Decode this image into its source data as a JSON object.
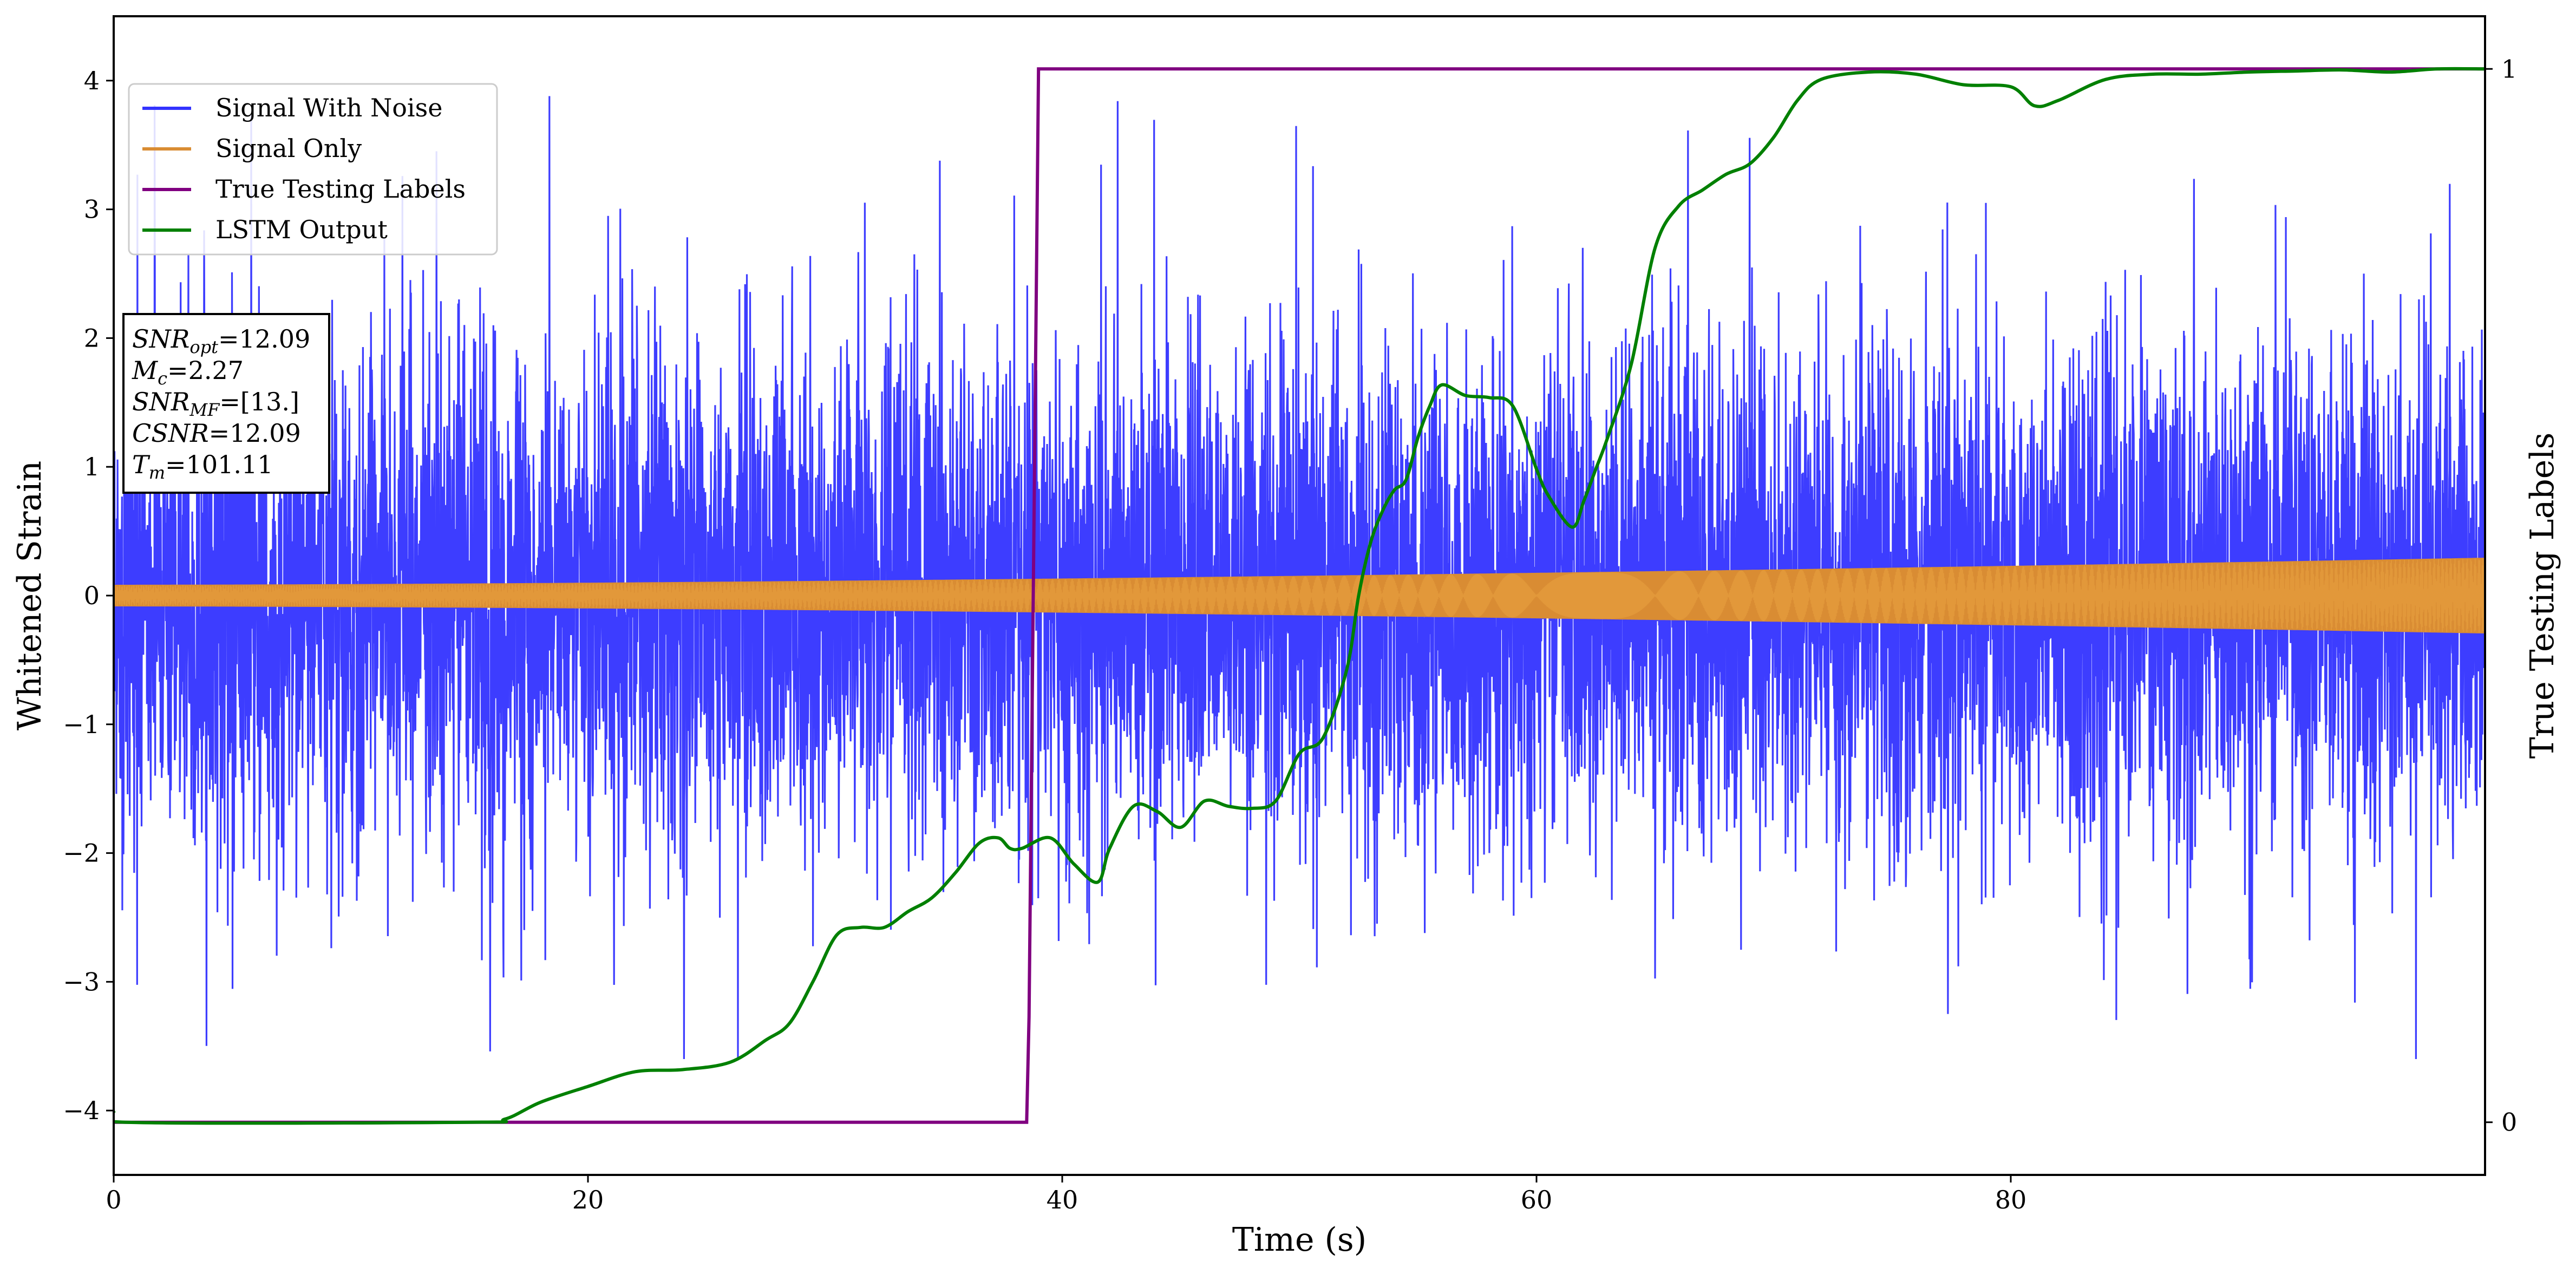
{
  "chart_data": {
    "type": "line",
    "xlabel": "Time (s)",
    "ylabel": "Whitened Strain",
    "y2label": "True Testing Labels",
    "xlim": [
      0,
      100
    ],
    "ylim": [
      -4.5,
      4.5
    ],
    "y2lim": [
      -0.05,
      1.05
    ],
    "xticks": [
      0,
      20,
      40,
      60,
      80
    ],
    "yticks": [
      -4,
      -3,
      -2,
      -1,
      0,
      1,
      2,
      3,
      4
    ],
    "y2ticks": [
      0,
      1
    ],
    "grid": false,
    "legend": "upper-left",
    "series": [
      {
        "name": "Signal With Noise",
        "axis": "left",
        "color": "#3333ff",
        "style": "dense-noise",
        "spread": 1.0,
        "envelope_peak": 4.05,
        "envelope_trough": -3.6
      },
      {
        "name": "Signal Only",
        "axis": "left",
        "color": "#d98c33",
        "style": "chirp",
        "amplitude_start": 0.08,
        "amplitude_end": 0.29
      },
      {
        "name": "True Testing Labels",
        "axis": "right",
        "color": "#800080",
        "x": [
          0,
          38.5,
          38.6,
          39.0,
          100
        ],
        "y": [
          0,
          0,
          0.1,
          1,
          1
        ]
      },
      {
        "name": "LSTM Output",
        "axis": "right",
        "color": "#008000",
        "x": [
          0,
          0.5,
          15,
          16.5,
          18,
          20,
          22,
          24,
          26,
          27.5,
          28.5,
          29.5,
          30.5,
          31.5,
          32.5,
          33.5,
          34.5,
          35.5,
          36.5,
          37.3,
          37.8,
          38.3,
          39.5,
          40.5,
          41.5,
          42,
          43,
          44,
          45,
          46,
          47,
          48,
          49,
          50,
          51,
          52,
          52.5,
          53,
          53.5,
          54,
          54.5,
          55,
          55.5,
          56,
          57,
          58,
          59,
          60,
          60.5,
          61.5,
          62,
          62.5,
          63,
          64,
          65,
          66,
          67,
          68,
          69,
          70,
          71,
          72,
          74,
          76,
          78,
          80,
          81,
          82,
          84,
          86,
          88,
          90,
          92,
          94,
          96,
          98,
          100
        ],
        "y": [
          0.01,
          0,
          0,
          0.003,
          0.019,
          0.034,
          0.048,
          0.05,
          0.057,
          0.078,
          0.094,
          0.134,
          0.178,
          0.185,
          0.185,
          0.2,
          0.213,
          0.237,
          0.265,
          0.27,
          0.26,
          0.26,
          0.27,
          0.245,
          0.228,
          0.26,
          0.3,
          0.295,
          0.28,
          0.305,
          0.3,
          0.298,
          0.305,
          0.35,
          0.365,
          0.43,
          0.5,
          0.55,
          0.58,
          0.6,
          0.61,
          0.65,
          0.68,
          0.7,
          0.69,
          0.688,
          0.68,
          0.62,
          0.595,
          0.565,
          0.59,
          0.62,
          0.65,
          0.72,
          0.83,
          0.87,
          0.885,
          0.9,
          0.91,
          0.935,
          0.97,
          0.99,
          0.997,
          0.995,
          0.985,
          0.983,
          0.965,
          0.97,
          0.99,
          0.995,
          0.995,
          0.997,
          0.998,
          0.999,
          0.997,
          1.0,
          1.0
        ]
      }
    ],
    "annotation": {
      "lines": [
        {
          "label": "SNR",
          "sub": "opt",
          "value": "=12.09"
        },
        {
          "label": "M",
          "sub": "c",
          "value": "=2.27"
        },
        {
          "label": "SNR",
          "sub": "MF",
          "value": "=[13.]"
        },
        {
          "label": "CSNR",
          "sub": "",
          "value": "=12.09"
        },
        {
          "label": "T",
          "sub": "m",
          "value": "=101.11"
        }
      ]
    }
  }
}
